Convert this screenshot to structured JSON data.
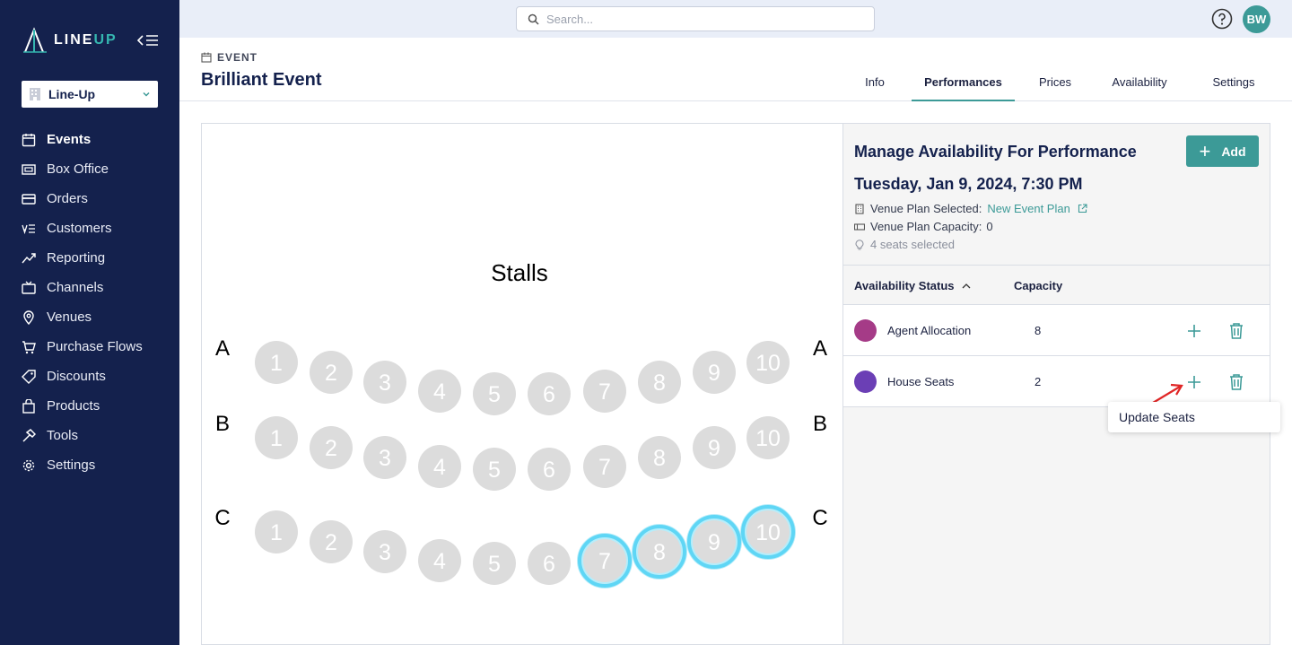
{
  "app": {
    "logo": {
      "line": "LINE",
      "up": "UP"
    },
    "org_selector": "Line-Up"
  },
  "sidebar": {
    "items": [
      {
        "label": "Events",
        "icon": "calendar-icon",
        "active": true
      },
      {
        "label": "Box Office",
        "icon": "box-office-icon"
      },
      {
        "label": "Orders",
        "icon": "credit-card-icon"
      },
      {
        "label": "Customers",
        "icon": "customers-icon"
      },
      {
        "label": "Reporting",
        "icon": "trend-line-icon"
      },
      {
        "label": "Channels",
        "icon": "tv-icon"
      },
      {
        "label": "Venues",
        "icon": "map-pin-icon"
      },
      {
        "label": "Purchase Flows",
        "icon": "cart-icon"
      },
      {
        "label": "Discounts",
        "icon": "tag-icon"
      },
      {
        "label": "Products",
        "icon": "shopping-bag-icon"
      },
      {
        "label": "Tools",
        "icon": "hammer-icon"
      },
      {
        "label": "Settings",
        "icon": "gear-icon"
      }
    ]
  },
  "topbar": {
    "search_placeholder": "Search...",
    "avatar_initials": "BW"
  },
  "header": {
    "breadcrumb": "EVENT",
    "title": "Brilliant Event",
    "tabs": [
      {
        "label": "Info"
      },
      {
        "label": "Performances",
        "active": true
      },
      {
        "label": "Prices"
      },
      {
        "label": "Availability"
      },
      {
        "label": "Settings"
      }
    ]
  },
  "seatmap": {
    "section": "Stalls",
    "rows": [
      {
        "label": "A",
        "seats": [
          "1",
          "2",
          "3",
          "4",
          "5",
          "6",
          "7",
          "8",
          "9",
          "10"
        ],
        "selected": []
      },
      {
        "label": "B",
        "seats": [
          "1",
          "2",
          "3",
          "4",
          "5",
          "6",
          "7",
          "8",
          "9",
          "10"
        ],
        "selected": []
      },
      {
        "label": "C",
        "seats": [
          "1",
          "2",
          "3",
          "4",
          "5",
          "6",
          "7",
          "8",
          "9",
          "10"
        ],
        "selected": [
          "7",
          "8",
          "9",
          "10"
        ]
      }
    ],
    "seat_color": "#dcdcdc",
    "selected_color": "#5fd6f5"
  },
  "panel": {
    "title": "Manage Availability For Performance",
    "add_label": "Add",
    "date": "Tuesday, Jan 9, 2024,  7:30 PM",
    "venue_plan_label": "Venue Plan Selected:",
    "venue_plan_link": "New Event Plan",
    "capacity_label": "Venue Plan Capacity:",
    "capacity_value": "0",
    "seats_selected": "4 seats selected",
    "columns": {
      "status": "Availability Status",
      "capacity": "Capacity"
    },
    "rows": [
      {
        "name": "Agent Allocation",
        "capacity": "8",
        "color": "#a53b87"
      },
      {
        "name": "House Seats",
        "capacity": "2",
        "color": "#6b3fb5"
      }
    ],
    "tooltip": "Update Seats",
    "accent": "#3c9a97"
  }
}
